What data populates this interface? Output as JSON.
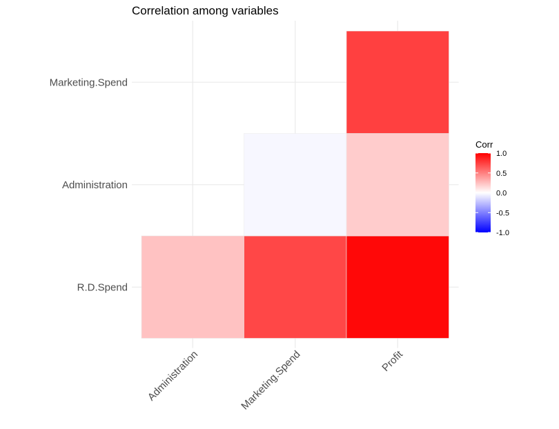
{
  "chart_data": {
    "type": "heatmap",
    "title": "Correlation among variables",
    "xlabel": "",
    "ylabel": "",
    "x_categories": [
      "Administration",
      "Marketing.Spend",
      "Profit"
    ],
    "y_categories": [
      "R.D.Spend",
      "Administration",
      "Marketing.Spend"
    ],
    "cells": [
      {
        "x": "Administration",
        "y": "R.D.Spend",
        "value": 0.24
      },
      {
        "x": "Marketing.Spend",
        "y": "R.D.Spend",
        "value": 0.72
      },
      {
        "x": "Profit",
        "y": "R.D.Spend",
        "value": 0.97
      },
      {
        "x": "Marketing.Spend",
        "y": "Administration",
        "value": -0.03
      },
      {
        "x": "Profit",
        "y": "Administration",
        "value": 0.2
      },
      {
        "x": "Profit",
        "y": "Marketing.Spend",
        "value": 0.75
      }
    ],
    "legend": {
      "title": "Corr",
      "position": "right",
      "range": [
        -1,
        1
      ],
      "ticks": [
        1.0,
        0.5,
        0.0,
        -0.5,
        -1.0
      ],
      "tick_labels": [
        "1.0",
        "0.5",
        "0.0",
        "-0.5",
        "-1.0"
      ],
      "colors": {
        "low": "#0000ff",
        "mid": "#ffffff",
        "high": "#ff0000"
      }
    },
    "grid": true
  }
}
